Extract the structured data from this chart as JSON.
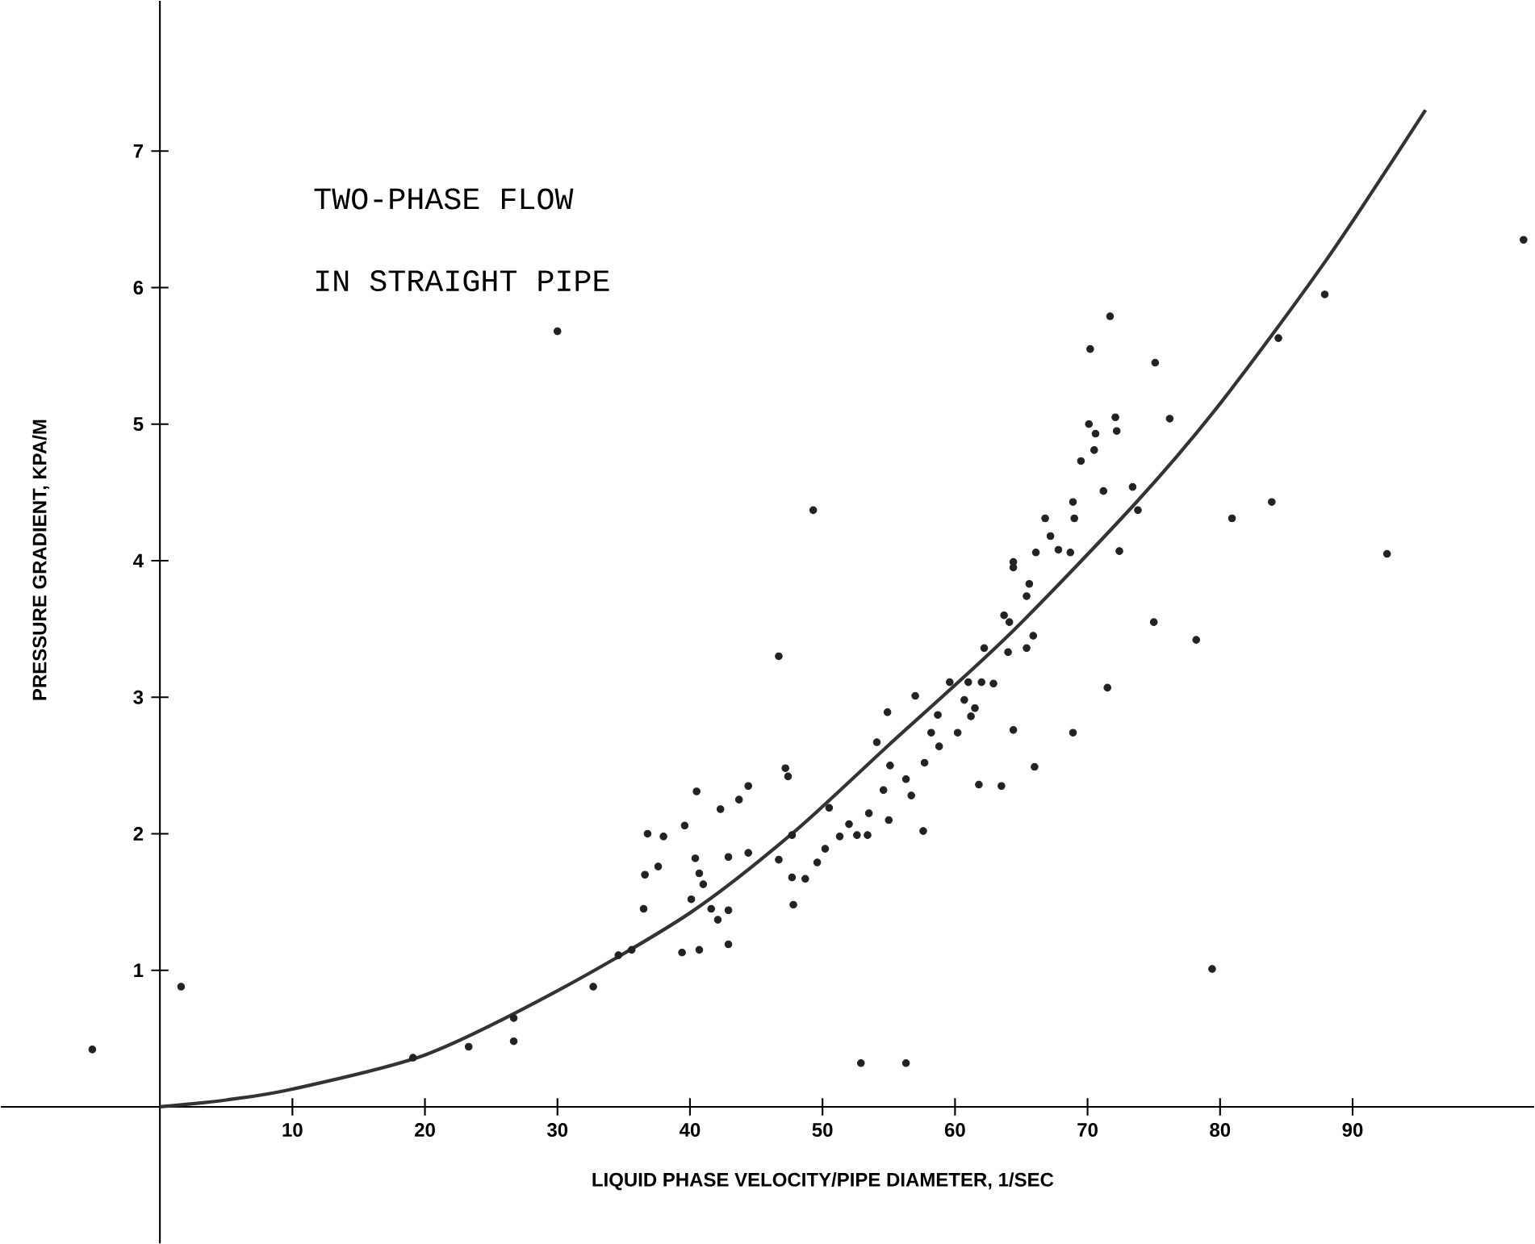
{
  "chart_data": {
    "type": "scatter",
    "title": "TWO-PHASE FLOW",
    "subtitle": "IN STRAIGHT PIPE",
    "xlabel": "LIQUID PHASE VELOCITY/PIPE DIAMETER, 1/SEC",
    "ylabel": "PRESSURE GRADIENT, KPA/M",
    "xlim": [
      -12,
      103.7
    ],
    "ylim": [
      -1,
      8.1
    ],
    "xticks": [
      10,
      20,
      30,
      40,
      50,
      60,
      70,
      80,
      90
    ],
    "yticks": [
      1,
      2,
      3,
      4,
      5,
      6,
      7
    ],
    "grid": false,
    "legend": false,
    "series": [
      {
        "marker": "circle",
        "color": "#222222",
        "x": [
          46.7,
          57.0,
          54.9,
          40.5,
          47.2,
          47.4,
          44.4,
          43.7,
          42.3,
          36.8,
          38.0,
          39.6,
          37.6,
          36.6,
          40.4,
          40.7,
          41.0,
          42.9,
          44.4,
          40.1,
          41.6,
          42.1,
          42.9,
          42.9,
          39.4,
          40.7,
          36.5,
          35.6,
          34.6,
          32.7,
          46.7,
          47.7,
          47.7,
          48.7,
          47.8,
          49.6,
          50.2,
          51.3,
          52.0,
          52.6,
          53.4,
          53.5,
          55.0,
          55.1,
          54.6,
          54.1,
          56.3,
          56.7,
          57.6,
          58.2,
          50.5,
          56.3,
          71.7,
          70.2,
          75.1,
          84.4,
          72.1,
          72.2,
          70.1,
          70.6,
          70.5,
          76.2,
          69.5,
          71.2,
          73.4,
          73.8,
          68.9,
          69.0,
          66.8,
          67.2,
          67.8,
          68.7,
          66.1,
          64.4,
          64.4,
          65.6,
          65.4,
          72.4,
          80.9,
          83.9,
          63.7,
          64.1,
          65.9,
          64.0,
          65.4,
          62.2,
          75.0,
          78.2,
          71.5,
          59.6,
          61.0,
          62.0,
          62.9,
          60.7,
          61.5,
          58.7,
          61.2,
          60.2,
          58.8,
          64.4,
          68.9,
          66.0,
          57.7,
          61.8,
          63.5,
          30.0,
          19.1,
          23.3,
          26.7,
          26.7,
          1.6,
          -5.1,
          49.3,
          52.9,
          79.4,
          92.6,
          102.9,
          87.9
        ],
        "values": [
          3.3,
          3.01,
          2.89,
          2.31,
          2.48,
          2.42,
          2.35,
          2.25,
          2.18,
          2.0,
          1.98,
          2.06,
          1.76,
          1.7,
          1.82,
          1.71,
          1.63,
          1.83,
          1.86,
          1.52,
          1.45,
          1.37,
          1.44,
          1.19,
          1.13,
          1.15,
          1.45,
          1.15,
          1.11,
          0.88,
          1.81,
          1.99,
          1.68,
          1.67,
          1.48,
          1.79,
          1.89,
          1.98,
          2.07,
          1.99,
          1.99,
          2.15,
          2.1,
          2.5,
          2.32,
          2.67,
          2.4,
          2.28,
          2.02,
          2.74,
          2.19,
          0.32,
          5.79,
          5.55,
          5.45,
          5.63,
          5.05,
          4.95,
          5.0,
          4.93,
          4.81,
          5.04,
          4.73,
          4.51,
          4.54,
          4.37,
          4.43,
          4.31,
          4.31,
          4.18,
          4.08,
          4.06,
          4.06,
          3.99,
          3.95,
          3.83,
          3.74,
          4.07,
          4.31,
          4.43,
          3.6,
          3.55,
          3.45,
          3.33,
          3.36,
          3.36,
          3.55,
          3.42,
          3.07,
          3.11,
          3.11,
          3.11,
          3.1,
          2.98,
          2.92,
          2.87,
          2.86,
          2.74,
          2.64,
          2.76,
          2.74,
          2.49,
          2.52,
          2.36,
          2.35,
          5.68,
          0.36,
          0.44,
          0.48,
          0.65,
          0.88,
          0.42,
          4.37,
          0.32,
          1.01,
          4.05,
          6.35,
          5.95
        ]
      },
      {
        "type": "line",
        "marker": "none",
        "color": "#333333",
        "x": [
          0,
          5,
          10,
          20,
          30,
          40,
          47.7,
          55,
          64,
          73.7,
          80,
          88,
          95.5
        ],
        "values": [
          0,
          0.05,
          0.13,
          0.38,
          0.85,
          1.42,
          2.0,
          2.65,
          3.45,
          4.43,
          5.15,
          6.2,
          7.3
        ]
      }
    ]
  }
}
